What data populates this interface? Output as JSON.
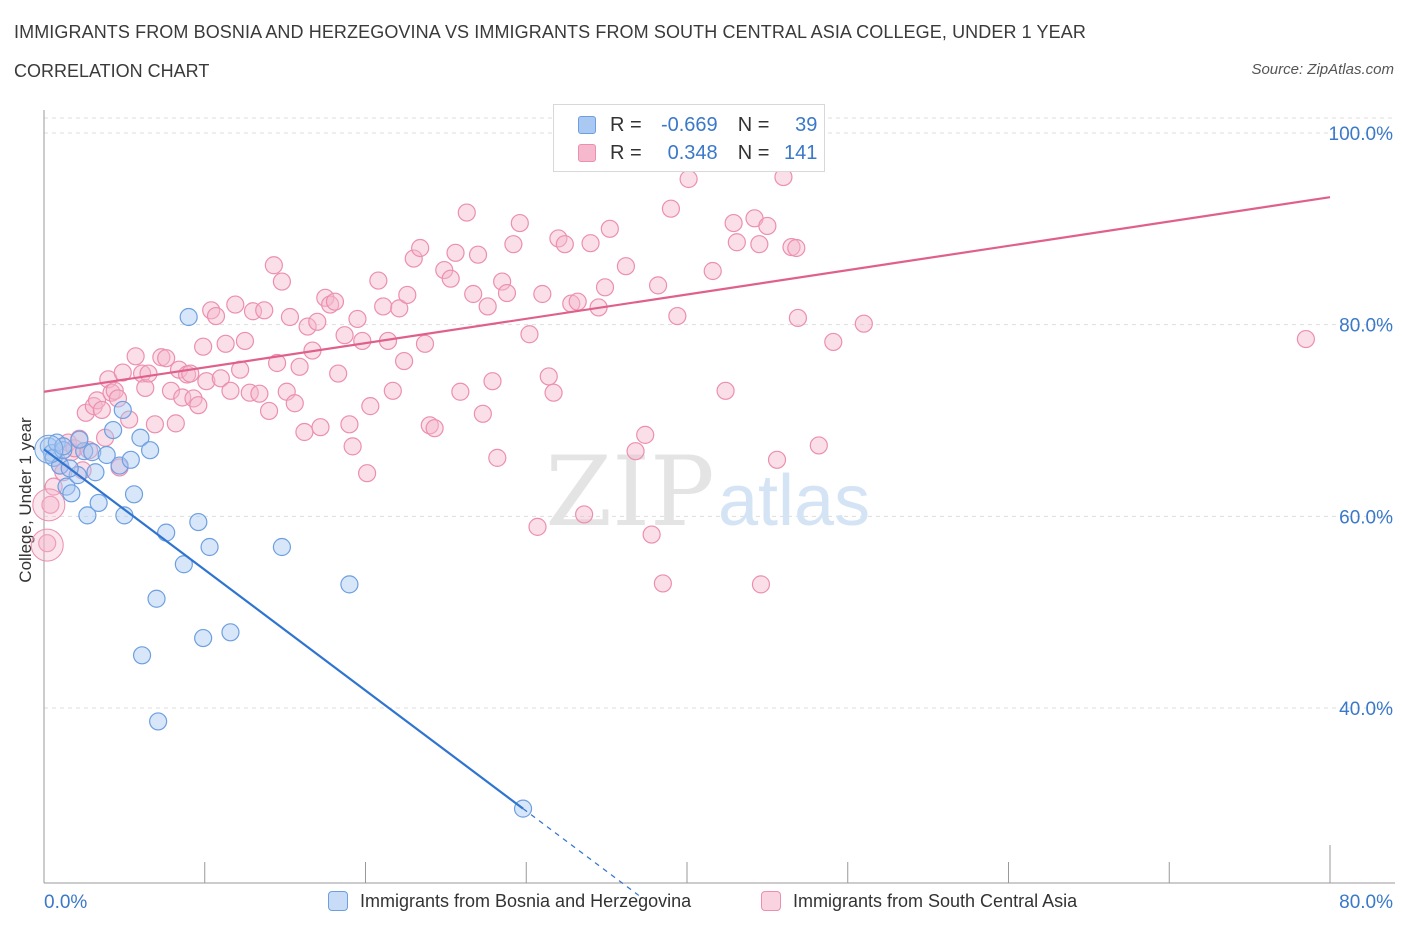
{
  "header": {
    "title": "IMMIGRANTS FROM BOSNIA AND HERZEGOVINA VS IMMIGRANTS FROM SOUTH CENTRAL ASIA COLLEGE, UNDER 1 YEAR",
    "subtitle": "CORRELATION CHART",
    "source": "Source: ZipAtlas.com"
  },
  "watermark": {
    "zip": "ZIP",
    "atlas": "atlas"
  },
  "stats_legend": {
    "r_label": "R =",
    "n_label": "N =",
    "rows": [
      {
        "r": "-0.669",
        "n": "39"
      },
      {
        "r": "0.348",
        "n": "141"
      }
    ]
  },
  "colors": {
    "blue_fill": "#a9c8f2",
    "blue_stroke": "#6d9fe0",
    "blue_line": "#2f74d0",
    "pink_fill": "#f5b8cc",
    "pink_stroke": "#ec8fae",
    "pink_line": "#e0608c",
    "tick_label": "#3a78c9",
    "grid": "#dddddd"
  },
  "chart_data": {
    "type": "scatter",
    "title": "IMMIGRANTS FROM BOSNIA AND HERZEGOVINA VS IMMIGRANTS FROM SOUTH CENTRAL ASIA COLLEGE, UNDER 1 YEAR",
    "xlabel": "",
    "ylabel": "College, Under 1 year",
    "xlim": [
      0,
      80
    ],
    "ylim": [
      20,
      100
    ],
    "x_tick_labels": [
      "0.0%",
      "80.0%"
    ],
    "y_ticks": [
      40,
      60,
      80,
      100
    ],
    "y_tick_labels": [
      "40.0%",
      "60.0%",
      "80.0%",
      "100.0%"
    ],
    "grid": true,
    "legend": [
      "Immigrants from Bosnia and Herzegovina",
      "Immigrants from South Central Asia"
    ],
    "series": [
      {
        "name": "Immigrants from Bosnia and Herzegovina",
        "r": -0.669,
        "n": 39,
        "trendline": {
          "x0": 0,
          "y0": 67,
          "x1": 29.8,
          "y1": 29.5,
          "dashed_to_x": 37
        },
        "points": [
          [
            0.3,
            67.3
          ],
          [
            0.5,
            66.6
          ],
          [
            0.6,
            66.1
          ],
          [
            0.8,
            67.7
          ],
          [
            1.0,
            65.3
          ],
          [
            1.2,
            66.9
          ],
          [
            1.4,
            63.1
          ],
          [
            1.2,
            67.3
          ],
          [
            1.7,
            62.4
          ],
          [
            2.1,
            64.3
          ],
          [
            2.5,
            66.8
          ],
          [
            2.7,
            60.1
          ],
          [
            3.0,
            66.7
          ],
          [
            2.2,
            68.0
          ],
          [
            3.4,
            61.4
          ],
          [
            3.9,
            66.4
          ],
          [
            4.3,
            69.0
          ],
          [
            4.7,
            65.3
          ],
          [
            4.9,
            71.1
          ],
          [
            5.0,
            60.1
          ],
          [
            5.4,
            65.9
          ],
          [
            5.6,
            62.3
          ],
          [
            6.0,
            68.2
          ],
          [
            6.6,
            66.9
          ],
          [
            6.1,
            45.5
          ],
          [
            7.0,
            51.4
          ],
          [
            7.1,
            38.6
          ],
          [
            7.6,
            58.3
          ],
          [
            8.7,
            55.0
          ],
          [
            9.0,
            80.8
          ],
          [
            9.6,
            59.4
          ],
          [
            9.9,
            47.3
          ],
          [
            10.3,
            56.8
          ],
          [
            11.6,
            47.9
          ],
          [
            14.8,
            56.8
          ],
          [
            19.0,
            52.9
          ],
          [
            29.8,
            29.5
          ],
          [
            1.6,
            65.0
          ],
          [
            3.2,
            64.6
          ]
        ]
      },
      {
        "name": "Immigrants from South Central Asia",
        "r": 0.348,
        "n": 141,
        "trendline": {
          "x0": 0,
          "y0": 73.0,
          "x1": 80,
          "y1": 93.3
        },
        "points": [
          [
            0.2,
            57.2
          ],
          [
            0.4,
            61.2
          ],
          [
            0.6,
            63.1
          ],
          [
            1.0,
            65.3
          ],
          [
            1.2,
            64.6
          ],
          [
            1.5,
            67.7
          ],
          [
            1.7,
            66.7
          ],
          [
            1.9,
            67.1
          ],
          [
            2.2,
            68.1
          ],
          [
            2.4,
            64.8
          ],
          [
            2.6,
            70.8
          ],
          [
            2.8,
            66.9
          ],
          [
            3.1,
            71.5
          ],
          [
            3.3,
            72.1
          ],
          [
            3.6,
            71.1
          ],
          [
            3.8,
            68.2
          ],
          [
            4.0,
            74.3
          ],
          [
            4.2,
            72.9
          ],
          [
            4.4,
            73.1
          ],
          [
            4.6,
            72.3
          ],
          [
            4.7,
            65.1
          ],
          [
            4.9,
            75.0
          ],
          [
            5.3,
            70.1
          ],
          [
            5.7,
            76.7
          ],
          [
            6.1,
            74.9
          ],
          [
            6.3,
            73.4
          ],
          [
            6.5,
            74.9
          ],
          [
            6.9,
            69.6
          ],
          [
            7.3,
            76.6
          ],
          [
            7.6,
            76.5
          ],
          [
            7.9,
            73.1
          ],
          [
            8.2,
            69.7
          ],
          [
            8.4,
            75.3
          ],
          [
            8.6,
            72.4
          ],
          [
            8.9,
            74.8
          ],
          [
            9.1,
            74.9
          ],
          [
            9.3,
            72.3
          ],
          [
            9.6,
            71.6
          ],
          [
            9.9,
            77.7
          ],
          [
            10.1,
            74.1
          ],
          [
            10.4,
            81.5
          ],
          [
            10.7,
            80.9
          ],
          [
            11.0,
            74.4
          ],
          [
            11.3,
            78.0
          ],
          [
            11.6,
            73.1
          ],
          [
            11.9,
            82.1
          ],
          [
            12.2,
            75.3
          ],
          [
            12.5,
            78.3
          ],
          [
            12.8,
            72.9
          ],
          [
            13.0,
            81.4
          ],
          [
            13.4,
            72.8
          ],
          [
            13.7,
            81.5
          ],
          [
            14.0,
            71.0
          ],
          [
            14.3,
            86.2
          ],
          [
            14.5,
            76.0
          ],
          [
            14.8,
            84.5
          ],
          [
            15.1,
            73.0
          ],
          [
            15.3,
            80.8
          ],
          [
            15.6,
            71.8
          ],
          [
            15.9,
            75.6
          ],
          [
            16.2,
            68.8
          ],
          [
            16.4,
            79.8
          ],
          [
            16.7,
            77.3
          ],
          [
            17.0,
            80.3
          ],
          [
            17.2,
            69.3
          ],
          [
            17.5,
            82.8
          ],
          [
            17.8,
            82.1
          ],
          [
            18.1,
            82.4
          ],
          [
            18.3,
            74.9
          ],
          [
            18.7,
            78.9
          ],
          [
            19.0,
            69.6
          ],
          [
            19.2,
            67.3
          ],
          [
            19.5,
            80.6
          ],
          [
            19.8,
            78.3
          ],
          [
            20.1,
            64.5
          ],
          [
            20.3,
            71.5
          ],
          [
            20.8,
            84.6
          ],
          [
            21.1,
            81.9
          ],
          [
            21.4,
            78.3
          ],
          [
            21.7,
            73.1
          ],
          [
            22.1,
            81.7
          ],
          [
            22.4,
            76.2
          ],
          [
            22.6,
            83.1
          ],
          [
            23.0,
            86.9
          ],
          [
            23.4,
            88.0
          ],
          [
            23.7,
            78.0
          ],
          [
            24.0,
            69.5
          ],
          [
            24.3,
            69.2
          ],
          [
            24.9,
            85.7
          ],
          [
            25.3,
            84.8
          ],
          [
            25.6,
            87.5
          ],
          [
            25.9,
            73.0
          ],
          [
            26.3,
            91.7
          ],
          [
            26.7,
            83.2
          ],
          [
            27.0,
            87.3
          ],
          [
            27.3,
            70.7
          ],
          [
            27.6,
            81.9
          ],
          [
            27.9,
            74.1
          ],
          [
            28.2,
            66.1
          ],
          [
            28.5,
            84.5
          ],
          [
            28.8,
            83.3
          ],
          [
            29.2,
            88.4
          ],
          [
            29.6,
            90.6
          ],
          [
            30.2,
            79.0
          ],
          [
            30.7,
            58.9
          ],
          [
            31.0,
            83.2
          ],
          [
            31.4,
            74.6
          ],
          [
            31.7,
            72.9
          ],
          [
            32.0,
            89.0
          ],
          [
            32.4,
            88.4
          ],
          [
            32.8,
            82.2
          ],
          [
            33.2,
            82.4
          ],
          [
            33.6,
            60.2
          ],
          [
            34.0,
            88.5
          ],
          [
            34.5,
            81.8
          ],
          [
            34.9,
            83.9
          ],
          [
            35.2,
            90.0
          ],
          [
            36.2,
            86.1
          ],
          [
            36.8,
            66.8
          ],
          [
            37.4,
            68.5
          ],
          [
            37.8,
            58.1
          ],
          [
            38.2,
            84.1
          ],
          [
            38.5,
            53.0
          ],
          [
            39.0,
            92.1
          ],
          [
            39.4,
            80.9
          ],
          [
            40.1,
            95.2
          ],
          [
            41.6,
            85.6
          ],
          [
            42.4,
            73.1
          ],
          [
            42.9,
            90.6
          ],
          [
            43.1,
            88.6
          ],
          [
            44.2,
            91.1
          ],
          [
            44.5,
            88.4
          ],
          [
            44.6,
            52.9
          ],
          [
            45.0,
            90.3
          ],
          [
            45.6,
            65.9
          ],
          [
            46.0,
            95.4
          ],
          [
            46.5,
            88.1
          ],
          [
            46.8,
            88.0
          ],
          [
            46.9,
            80.7
          ],
          [
            48.2,
            67.4
          ],
          [
            49.1,
            78.2
          ],
          [
            51.0,
            80.1
          ],
          [
            78.5,
            78.5
          ]
        ]
      }
    ]
  },
  "bottom_legend": {
    "items": [
      {
        "label": "Immigrants from Bosnia and Herzegovina"
      },
      {
        "label": "Immigrants from South Central Asia"
      }
    ]
  }
}
